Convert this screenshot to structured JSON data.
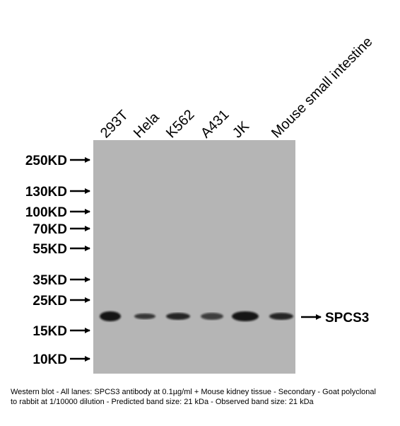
{
  "lanes": [
    "293T",
    "Hela",
    "K562",
    "A431",
    "JK",
    "Mouse small intestine"
  ],
  "markers": [
    "250KD",
    "130KD",
    "100KD",
    "70KD",
    "55KD",
    "35KD",
    "25KD",
    "15KD",
    "10KD"
  ],
  "band_label": "SPCS3",
  "caption": "Western blot - All lanes: SPCS3 antibody at 0.1µg/ml + Mouse kidney tissue - Secondary - Goat polyclonal to rabbit at 1/10000 dilution - Predicted band size: 21 kDa - Observed band size: 21 kDa"
}
